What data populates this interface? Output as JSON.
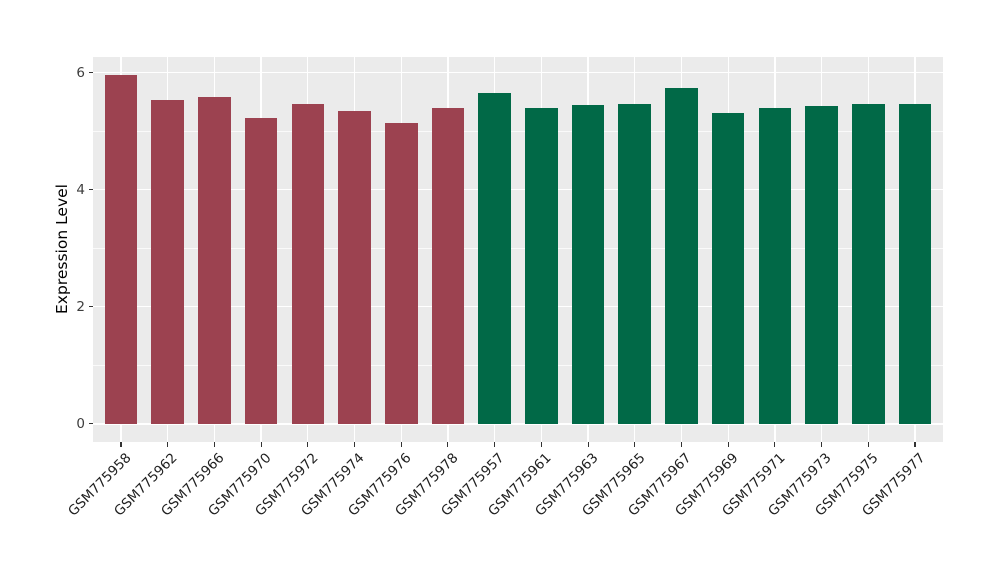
{
  "figure": {
    "background": "#ffffff",
    "panel_background": "#EBEBEB",
    "grid_color": "#ffffff",
    "tick_color": "#333333"
  },
  "chart_data": {
    "type": "bar",
    "title": "",
    "xlabel": "",
    "ylabel": "Expression Level",
    "legend": "none",
    "grid": true,
    "categories": [
      "GSM775958",
      "GSM775962",
      "GSM775966",
      "GSM775970",
      "GSM775972",
      "GSM775974",
      "GSM775976",
      "GSM775978",
      "GSM775957",
      "GSM775961",
      "GSM775963",
      "GSM775965",
      "GSM775967",
      "GSM775969",
      "GSM775971",
      "GSM775973",
      "GSM775975",
      "GSM775977"
    ],
    "values": [
      5.96,
      5.54,
      5.58,
      5.23,
      5.47,
      5.35,
      5.14,
      5.4,
      5.66,
      5.4,
      5.45,
      5.47,
      5.74,
      5.31,
      5.4,
      5.44,
      5.47,
      5.47
    ],
    "groups": [
      "group1",
      "group1",
      "group1",
      "group1",
      "group1",
      "group1",
      "group1",
      "group1",
      "group2",
      "group2",
      "group2",
      "group2",
      "group2",
      "group2",
      "group2",
      "group2",
      "group2",
      "group2"
    ],
    "group_colors": {
      "group1": "#9C4250",
      "group2": "#016947"
    },
    "ylim": [
      0,
      6
    ],
    "y_range_shown": [
      -0.31,
      6.27
    ],
    "y_ticks": [
      0,
      2,
      4,
      6
    ],
    "y_tick_labels": [
      "0",
      "2",
      "4",
      "6"
    ],
    "y_minor_ticks": [
      1,
      3,
      5
    ],
    "x_tick_angle_deg": 45,
    "bar_width_fraction": 0.7
  }
}
